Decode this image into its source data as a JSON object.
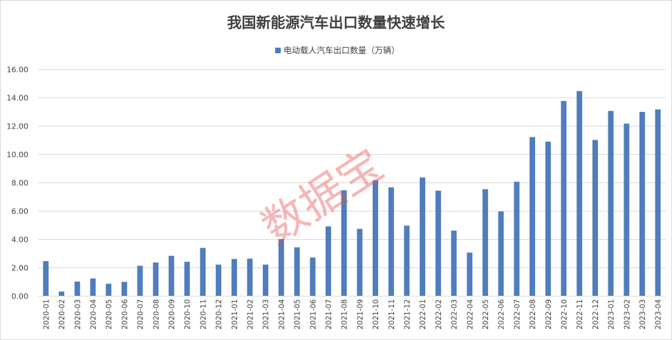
{
  "colors": {
    "bar": "#4f7dbd",
    "grid": "#d9d9d9",
    "text": "#404040",
    "watermark": "#eb5050"
  },
  "watermark": "数据宝",
  "chart_data": {
    "type": "bar",
    "title": "我国新能源汽车出口数量快速增长",
    "legend_position": "top",
    "grid": true,
    "ylim": [
      0,
      16
    ],
    "yticks": [
      "0.00",
      "2.00",
      "4.00",
      "6.00",
      "8.00",
      "10.00",
      "12.00",
      "14.00",
      "16.00"
    ],
    "categories": [
      "2020-01",
      "2020-02",
      "2020-03",
      "2020-04",
      "2020-05",
      "2020-06",
      "2020-07",
      "2020-08",
      "2020-09",
      "2020-10",
      "2020-11",
      "2020-12",
      "2021-01",
      "2021-02",
      "2021-03",
      "2021-04",
      "2021-05",
      "2021-06",
      "2021-07",
      "2021-08",
      "2021-09",
      "2021-10",
      "2021-11",
      "2021-12",
      "2022-01",
      "2022-02",
      "2022-03",
      "2022-04",
      "2022-05",
      "2022-06",
      "2022-07",
      "2022-08",
      "2022-09",
      "2022-10",
      "2022-11",
      "2022-12",
      "2023-01",
      "2023-02",
      "2023-03",
      "2023-04"
    ],
    "series": [
      {
        "name": "电动载人汽车出口数量（万辆）",
        "values": [
          2.45,
          0.3,
          1.0,
          1.22,
          0.85,
          0.98,
          2.12,
          2.35,
          2.82,
          2.4,
          3.38,
          2.2,
          2.6,
          2.62,
          2.2,
          4.0,
          3.42,
          2.7,
          4.9,
          7.45,
          4.72,
          8.15,
          7.65,
          4.95,
          8.35,
          7.42,
          4.6,
          3.05,
          7.52,
          5.95,
          8.05,
          11.2,
          10.88,
          13.75,
          14.45,
          11.0,
          13.05,
          12.15,
          12.98,
          13.15
        ]
      }
    ]
  }
}
